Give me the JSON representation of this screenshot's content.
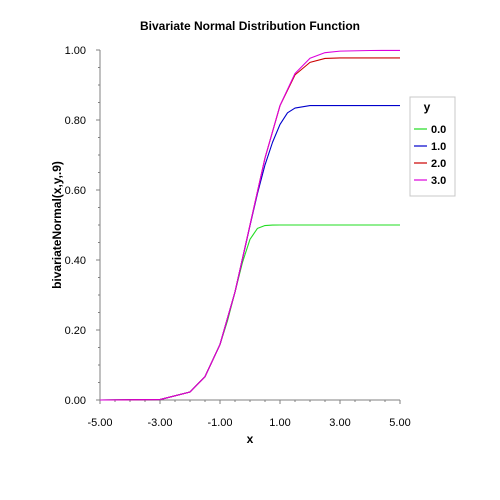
{
  "chart_data": {
    "type": "line",
    "title": "Bivariate Normal Distribution Function",
    "xlabel": "x",
    "ylabel": "bivariateNormal(x,y,.9)",
    "xlim": [
      -5,
      5
    ],
    "ylim": [
      0,
      1
    ],
    "x_ticks": [
      "-5.00",
      "-3.00",
      "-1.00",
      "1.00",
      "3.00",
      "5.00"
    ],
    "y_ticks": [
      "0.00",
      "0.20",
      "0.40",
      "0.60",
      "0.80",
      "1.00"
    ],
    "legend": {
      "title": "y",
      "placement": "right"
    },
    "grid": false,
    "series": [
      {
        "name": "0.0",
        "color": "#22dd22",
        "y": 0.0,
        "x": [
          -5,
          -3,
          -2,
          -1.5,
          -1,
          -0.75,
          -0.5,
          -0.25,
          0,
          0.25,
          0.5,
          0.75,
          1,
          1.5,
          2,
          3,
          4,
          5
        ],
        "values": [
          0,
          0.0013,
          0.0228,
          0.0668,
          0.1587,
          0.2266,
          0.3085,
          0.3935,
          0.4592,
          0.4905,
          0.4985,
          0.4998,
          0.5,
          0.5,
          0.5,
          0.5,
          0.5,
          0.5
        ]
      },
      {
        "name": "1.0",
        "color": "#0000cc",
        "y": 1.0,
        "x": [
          -5,
          -3,
          -2,
          -1.5,
          -1,
          -0.5,
          0,
          0.25,
          0.5,
          0.75,
          1,
          1.25,
          1.5,
          2,
          3,
          4,
          5
        ],
        "values": [
          0,
          0.0013,
          0.0228,
          0.0668,
          0.1587,
          0.3085,
          0.4982,
          0.5904,
          0.6717,
          0.7361,
          0.7873,
          0.8205,
          0.8341,
          0.8413,
          0.8413,
          0.8413,
          0.8413
        ]
      },
      {
        "name": "2.0",
        "color": "#cc0000",
        "y": 2.0,
        "x": [
          -5,
          -3,
          -2,
          -1.5,
          -1,
          -0.5,
          0,
          0.5,
          1,
          1.5,
          2,
          2.5,
          3,
          4,
          5
        ],
        "values": [
          0,
          0.0013,
          0.0228,
          0.0668,
          0.1587,
          0.3085,
          0.5,
          0.6915,
          0.8409,
          0.9289,
          0.9647,
          0.9759,
          0.9772,
          0.9772,
          0.9772
        ]
      },
      {
        "name": "3.0",
        "color": "#dd00dd",
        "y": 3.0,
        "x": [
          -5,
          -3,
          -2,
          -1.5,
          -1,
          -0.5,
          0,
          0.5,
          1,
          1.5,
          2,
          2.5,
          3,
          4,
          5
        ],
        "values": [
          0,
          0.0013,
          0.0228,
          0.0668,
          0.1587,
          0.3085,
          0.5,
          0.6915,
          0.8413,
          0.933,
          0.9765,
          0.9924,
          0.9968,
          0.9986,
          0.9987
        ]
      }
    ]
  }
}
